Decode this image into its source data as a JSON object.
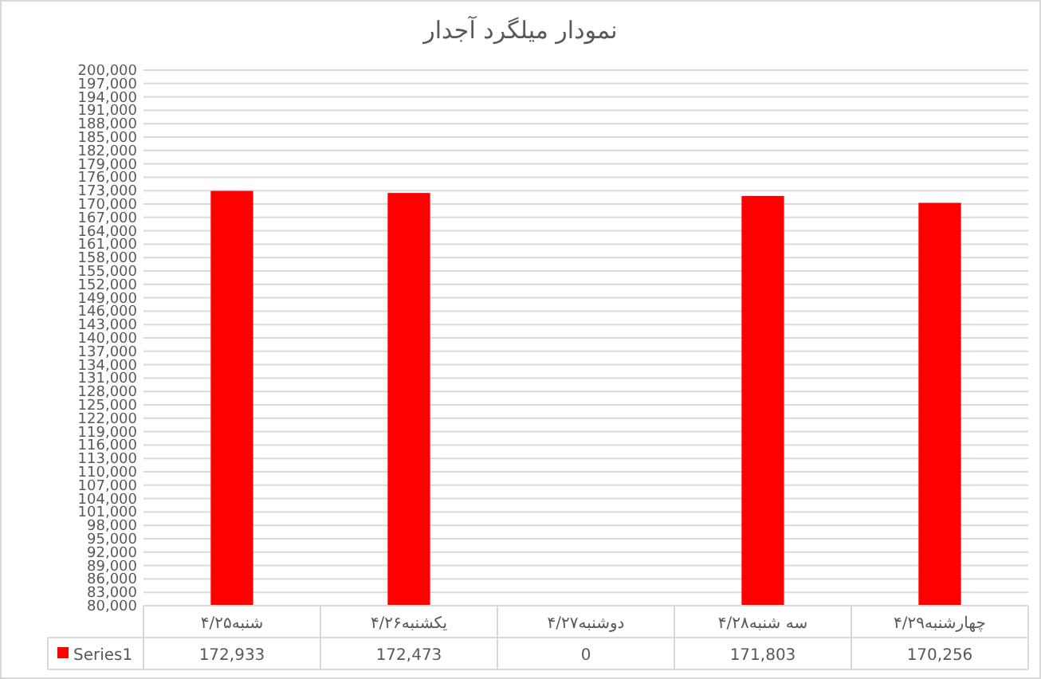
{
  "chart_data": {
    "type": "bar",
    "title": "نمودار میلگرد آجدار",
    "categories": [
      "شنبه۴/۲۵",
      "یکشنبه۴/۲۶",
      "دوشنبه۴/۲۷",
      "سه شنبه۴/۲۸",
      "چهارشنبه۴/۲۹"
    ],
    "series": [
      {
        "name": "Series1",
        "color": "#ff0000",
        "values": [
          172933,
          172473,
          null,
          171803,
          170256
        ],
        "value_labels": [
          "172,933",
          "172,473",
          "0",
          "171,803",
          "170,256"
        ]
      }
    ],
    "grid": "y",
    "legend": "bottom",
    "ylim": [
      80000,
      200000
    ],
    "yticks": [
      {
        "value": 80000,
        "label": "80,000"
      },
      {
        "value": 83000,
        "label": "83,000"
      },
      {
        "value": 86000,
        "label": "86,000"
      },
      {
        "value": 89000,
        "label": "89,000"
      },
      {
        "value": 92000,
        "label": "92,000"
      },
      {
        "value": 95000,
        "label": "95,000"
      },
      {
        "value": 98000,
        "label": "98,000"
      },
      {
        "value": 101000,
        "label": "101,000"
      },
      {
        "value": 104000,
        "label": "104,000"
      },
      {
        "value": 107000,
        "label": "107,000"
      },
      {
        "value": 110000,
        "label": "110,000"
      },
      {
        "value": 113000,
        "label": "113,000"
      },
      {
        "value": 116000,
        "label": "116,000"
      },
      {
        "value": 119000,
        "label": "119,000"
      },
      {
        "value": 122000,
        "label": "122,000"
      },
      {
        "value": 125000,
        "label": "125,000"
      },
      {
        "value": 128000,
        "label": "128,000"
      },
      {
        "value": 131000,
        "label": "131,000"
      },
      {
        "value": 134000,
        "label": "134,000"
      },
      {
        "value": 137000,
        "label": "137,000"
      },
      {
        "value": 140000,
        "label": "140,000"
      },
      {
        "value": 143000,
        "label": "143,000"
      },
      {
        "value": 146000,
        "label": "146,000"
      },
      {
        "value": 149000,
        "label": "149,000"
      },
      {
        "value": 152000,
        "label": "152,000"
      },
      {
        "value": 155000,
        "label": "155,000"
      },
      {
        "value": 158000,
        "label": "158,000"
      },
      {
        "value": 161000,
        "label": "161,000"
      },
      {
        "value": 164000,
        "label": "164,000"
      },
      {
        "value": 167000,
        "label": "167,000"
      },
      {
        "value": 170000,
        "label": "170,000"
      },
      {
        "value": 173000,
        "label": "173,000"
      },
      {
        "value": 176000,
        "label": "176,000"
      },
      {
        "value": 179000,
        "label": "179,000"
      },
      {
        "value": 182000,
        "label": "182,000"
      },
      {
        "value": 185000,
        "label": "185,000"
      },
      {
        "value": 188000,
        "label": "188,000"
      },
      {
        "value": 191000,
        "label": "191,000"
      },
      {
        "value": 194000,
        "label": "194,000"
      },
      {
        "value": 197000,
        "label": "197,000"
      },
      {
        "value": 200000,
        "label": "200,000"
      }
    ]
  }
}
